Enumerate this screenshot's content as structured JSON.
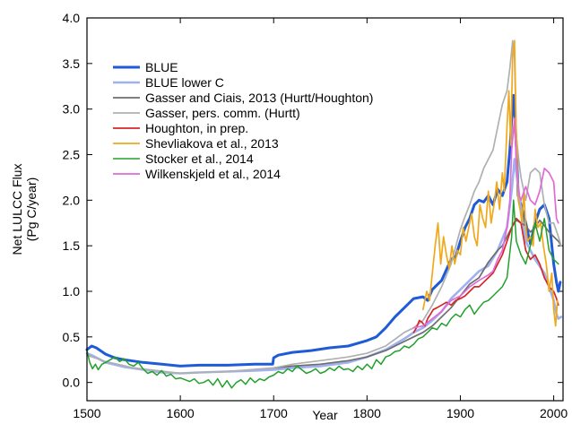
{
  "chart_data": {
    "type": "line",
    "title": "",
    "xlabel": "Year",
    "ylabel_lines": [
      "Net LULCC Flux",
      "(Pg C/year)"
    ],
    "xlim": [
      1500,
      2010
    ],
    "ylim": [
      -0.2,
      4.0
    ],
    "xticks": [
      1500,
      1600,
      1700,
      1800,
      1900,
      2000
    ],
    "yticks": [
      0.0,
      0.5,
      1.0,
      1.5,
      2.0,
      2.5,
      3.0,
      3.5,
      4.0
    ],
    "ytick_labels": [
      "0.0",
      "0.5",
      "1.0",
      "1.5",
      "2.0",
      "2.5",
      "3.0",
      "3.5",
      "4.0"
    ],
    "legend_position": "top-left",
    "series": [
      {
        "name": "BLUE",
        "color": "#1f5bd6",
        "width": 3.0,
        "x": [
          1500,
          1505,
          1510,
          1520,
          1530,
          1540,
          1560,
          1580,
          1600,
          1620,
          1650,
          1680,
          1699,
          1700,
          1705,
          1720,
          1740,
          1760,
          1780,
          1800,
          1810,
          1820,
          1830,
          1840,
          1850,
          1860,
          1865,
          1870,
          1880,
          1890,
          1895,
          1900,
          1905,
          1910,
          1915,
          1920,
          1925,
          1930,
          1935,
          1940,
          1945,
          1950,
          1953,
          1955,
          1957,
          1960,
          1962,
          1965,
          1970,
          1975,
          1980,
          1985,
          1990,
          1995,
          2000,
          2003,
          2005,
          2007
        ],
        "values": [
          0.36,
          0.4,
          0.38,
          0.31,
          0.27,
          0.25,
          0.22,
          0.2,
          0.18,
          0.19,
          0.19,
          0.2,
          0.2,
          0.27,
          0.3,
          0.33,
          0.35,
          0.38,
          0.4,
          0.46,
          0.5,
          0.6,
          0.72,
          0.82,
          0.92,
          0.94,
          0.9,
          1.02,
          1.12,
          1.35,
          1.38,
          1.55,
          1.7,
          1.8,
          1.95,
          2.0,
          1.98,
          2.05,
          1.95,
          2.12,
          2.05,
          2.2,
          2.55,
          2.9,
          3.15,
          2.6,
          2.05,
          1.95,
          1.75,
          1.52,
          1.75,
          1.9,
          1.95,
          1.8,
          1.3,
          1.1,
          1.0,
          1.1
        ]
      },
      {
        "name": "BLUE lower C",
        "color": "#9fb1f0",
        "width": 2.6,
        "x": [
          1500,
          1505,
          1520,
          1540,
          1560,
          1580,
          1600,
          1620,
          1650,
          1680,
          1700,
          1720,
          1750,
          1780,
          1800,
          1820,
          1840,
          1850,
          1860,
          1870,
          1880,
          1890,
          1900,
          1910,
          1920,
          1930,
          1940,
          1950,
          1955,
          1958,
          1960,
          1965,
          1970,
          1980,
          1990,
          1995,
          2000,
          2003,
          2005,
          2008
        ],
        "values": [
          0.32,
          0.3,
          0.22,
          0.17,
          0.14,
          0.11,
          0.1,
          0.11,
          0.12,
          0.13,
          0.14,
          0.16,
          0.18,
          0.22,
          0.28,
          0.36,
          0.48,
          0.55,
          0.6,
          0.68,
          0.78,
          0.92,
          1.02,
          1.12,
          1.22,
          1.28,
          1.45,
          1.7,
          2.1,
          2.45,
          2.3,
          1.9,
          1.55,
          1.35,
          1.2,
          1.05,
          0.9,
          0.75,
          0.7,
          0.72
        ]
      },
      {
        "name": "Gasser and Ciais, 2013 (Hurtt/Houghton)",
        "color": "#6e6e6e",
        "width": 1.7,
        "x": [
          1700,
          1720,
          1750,
          1780,
          1800,
          1820,
          1840,
          1850,
          1860,
          1870,
          1880,
          1890,
          1900,
          1910,
          1920,
          1930,
          1940,
          1945,
          1950,
          1955,
          1960,
          1965,
          1970,
          1975,
          1980,
          1985,
          1990,
          1995,
          2000,
          2005,
          2008
        ],
        "values": [
          0.16,
          0.18,
          0.2,
          0.24,
          0.28,
          0.35,
          0.45,
          0.5,
          0.55,
          0.62,
          0.72,
          0.82,
          0.95,
          1.08,
          1.15,
          1.32,
          1.45,
          1.5,
          1.6,
          1.7,
          1.78,
          1.75,
          1.72,
          1.65,
          1.7,
          1.78,
          1.72,
          1.65,
          1.6,
          1.55,
          1.5
        ]
      },
      {
        "name": "Gasser, pers. comm. (Hurtt)",
        "color": "#b0b0b0",
        "width": 1.7,
        "x": [
          1500,
          1520,
          1550,
          1600,
          1650,
          1700,
          1720,
          1750,
          1780,
          1800,
          1820,
          1840,
          1850,
          1860,
          1870,
          1880,
          1890,
          1900,
          1905,
          1910,
          1915,
          1920,
          1925,
          1930,
          1935,
          1940,
          1945,
          1950,
          1953,
          1956,
          1958,
          1960,
          1963,
          1965,
          1970,
          1975,
          1980,
          1985,
          1990,
          1995,
          2000,
          2005,
          2008
        ],
        "values": [
          0.3,
          0.23,
          0.16,
          0.1,
          0.12,
          0.16,
          0.2,
          0.24,
          0.28,
          0.32,
          0.4,
          0.55,
          0.6,
          0.68,
          0.85,
          1.05,
          1.3,
          1.68,
          1.82,
          1.95,
          2.1,
          2.2,
          2.35,
          2.45,
          2.55,
          2.8,
          3.05,
          3.2,
          3.45,
          3.75,
          3.55,
          2.7,
          2.4,
          2.25,
          2.0,
          2.3,
          2.35,
          2.3,
          1.95,
          1.75,
          1.75,
          1.6,
          1.5
        ]
      },
      {
        "name": "Houghton, in prep.",
        "color": "#d62728",
        "width": 1.7,
        "x": [
          1850,
          1853,
          1856,
          1859,
          1862,
          1865,
          1868,
          1871,
          1875,
          1880,
          1885,
          1890,
          1895,
          1900,
          1905,
          1910,
          1915,
          1920,
          1925,
          1930,
          1935,
          1940,
          1945,
          1950,
          1955,
          1960,
          1965,
          1970,
          1975,
          1980,
          1985,
          1990,
          1995,
          2000,
          2003,
          2005
        ],
        "values": [
          0.55,
          0.6,
          0.68,
          0.66,
          0.62,
          0.7,
          0.75,
          0.8,
          0.82,
          0.85,
          0.88,
          0.85,
          0.9,
          0.92,
          0.95,
          1.0,
          1.05,
          1.05,
          1.1,
          1.15,
          1.2,
          1.3,
          1.4,
          1.55,
          1.7,
          1.8,
          1.75,
          1.45,
          1.35,
          1.4,
          1.3,
          1.15,
          1.05,
          1.0,
          0.92,
          0.85
        ]
      },
      {
        "name": "Shevliakova et al., 2013",
        "color": "#f0a91c",
        "width": 1.7,
        "x": [
          1860,
          1864,
          1867,
          1870,
          1873,
          1876,
          1879,
          1882,
          1885,
          1888,
          1891,
          1894,
          1897,
          1900,
          1903,
          1906,
          1909,
          1912,
          1915,
          1918,
          1921,
          1924,
          1927,
          1930,
          1933,
          1936,
          1939,
          1942,
          1945,
          1947,
          1950,
          1952,
          1954,
          1956,
          1958,
          1960,
          1962,
          1964,
          1966,
          1968,
          1970,
          1972,
          1975,
          1978,
          1980,
          1983,
          1986,
          1989,
          1992,
          1995,
          1998,
          2000,
          2002,
          2004
        ],
        "values": [
          0.8,
          1.0,
          0.9,
          1.2,
          1.5,
          1.75,
          1.3,
          1.6,
          1.4,
          1.25,
          1.5,
          1.3,
          1.45,
          1.4,
          1.7,
          1.55,
          1.7,
          1.85,
          1.6,
          1.5,
          1.95,
          1.8,
          1.7,
          2.1,
          1.75,
          1.95,
          2.2,
          1.9,
          2.3,
          2.1,
          2.8,
          3.2,
          2.6,
          3.6,
          3.75,
          2.7,
          2.0,
          1.9,
          1.75,
          2.1,
          1.7,
          1.55,
          1.6,
          1.5,
          1.9,
          1.7,
          1.75,
          1.5,
          1.3,
          1.0,
          1.2,
          0.8,
          0.62,
          0.9
        ]
      },
      {
        "name": "Stocker et al., 2014",
        "color": "#22a02c",
        "width": 1.5,
        "x": [
          1500,
          1503,
          1506,
          1509,
          1512,
          1516,
          1520,
          1525,
          1530,
          1535,
          1540,
          1545,
          1550,
          1555,
          1560,
          1565,
          1570,
          1575,
          1580,
          1585,
          1590,
          1595,
          1600,
          1605,
          1610,
          1615,
          1620,
          1625,
          1630,
          1635,
          1640,
          1645,
          1650,
          1655,
          1660,
          1665,
          1670,
          1675,
          1680,
          1685,
          1690,
          1695,
          1700,
          1705,
          1710,
          1715,
          1720,
          1725,
          1730,
          1735,
          1740,
          1745,
          1750,
          1755,
          1760,
          1765,
          1770,
          1775,
          1780,
          1785,
          1790,
          1795,
          1800,
          1805,
          1810,
          1815,
          1820,
          1825,
          1830,
          1835,
          1840,
          1845,
          1850,
          1855,
          1860,
          1865,
          1870,
          1875,
          1880,
          1885,
          1890,
          1895,
          1900,
          1905,
          1910,
          1915,
          1920,
          1925,
          1930,
          1935,
          1940,
          1945,
          1950,
          1955,
          1957,
          1960,
          1965,
          1970,
          1975,
          1980,
          1985,
          1990,
          1995,
          2000,
          2005
        ],
        "values": [
          0.35,
          0.22,
          0.15,
          0.2,
          0.14,
          0.2,
          0.22,
          0.25,
          0.28,
          0.23,
          0.26,
          0.2,
          0.18,
          0.22,
          0.15,
          0.1,
          0.12,
          0.08,
          0.13,
          0.07,
          0.09,
          0.04,
          0.05,
          0.03,
          0.01,
          0.04,
          -0.01,
          0.0,
          0.03,
          -0.03,
          0.04,
          -0.05,
          0.02,
          -0.06,
          0.0,
          0.03,
          -0.02,
          0.05,
          0.0,
          0.04,
          0.02,
          0.06,
          0.08,
          0.12,
          0.1,
          0.15,
          0.12,
          0.18,
          0.14,
          0.1,
          0.12,
          0.15,
          0.1,
          0.12,
          0.16,
          0.13,
          0.18,
          0.14,
          0.15,
          0.12,
          0.18,
          0.14,
          0.2,
          0.15,
          0.25,
          0.2,
          0.28,
          0.3,
          0.34,
          0.35,
          0.4,
          0.38,
          0.42,
          0.48,
          0.5,
          0.55,
          0.6,
          0.58,
          0.65,
          0.62,
          0.7,
          0.75,
          0.72,
          0.8,
          0.85,
          0.75,
          0.82,
          0.88,
          0.9,
          0.95,
          1.0,
          1.05,
          1.15,
          1.6,
          2.0,
          1.55,
          1.4,
          1.3,
          1.5,
          1.75,
          1.55,
          1.8,
          1.45,
          1.35,
          1.3
        ]
      },
      {
        "name": "Wilkenskjeld et al., 2014",
        "color": "#e06ad6",
        "width": 1.7,
        "x": [
          1850,
          1860,
          1870,
          1880,
          1890,
          1900,
          1910,
          1920,
          1930,
          1935,
          1940,
          1945,
          1950,
          1953,
          1955,
          1958,
          1960,
          1963,
          1965,
          1970,
          1975,
          1980,
          1985,
          1990,
          1995,
          2000,
          2003,
          2005
        ],
        "values": [
          0.6,
          0.62,
          0.7,
          0.78,
          0.9,
          0.95,
          1.05,
          1.12,
          1.18,
          1.22,
          1.35,
          1.45,
          1.7,
          2.0,
          2.55,
          2.9,
          2.4,
          2.05,
          2.0,
          2.15,
          2.0,
          1.95,
          2.1,
          2.35,
          2.3,
          2.2,
          1.8,
          1.75
        ]
      }
    ]
  }
}
